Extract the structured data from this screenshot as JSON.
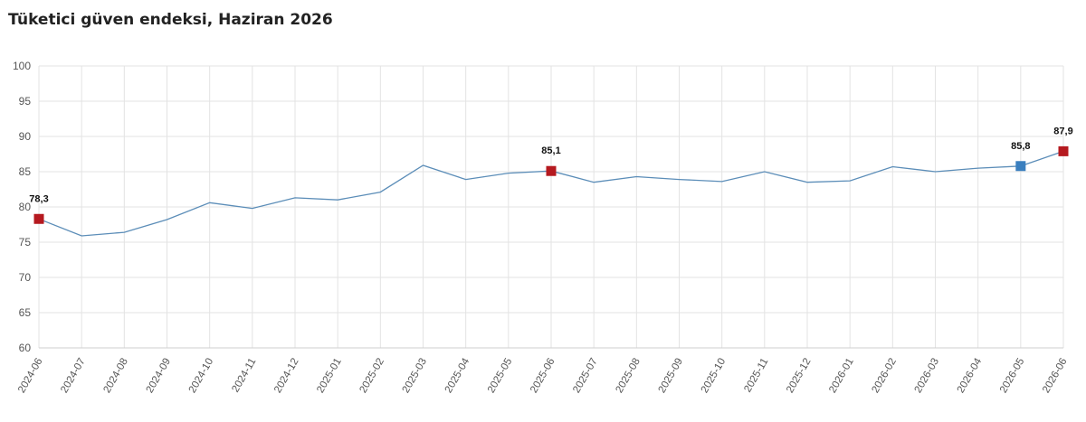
{
  "title": "Tüketici güven endeksi, Haziran 2026",
  "chart_data": {
    "type": "line",
    "title": "Tüketici güven endeksi, Haziran 2026",
    "xlabel": "",
    "ylabel": "",
    "ylim": [
      60,
      100
    ],
    "yticks": [
      "60",
      "65",
      "70",
      "75",
      "80",
      "85",
      "90",
      "95",
      "100"
    ],
    "grid": true,
    "categories": [
      "2024-06",
      "2024-07",
      "2024-08",
      "2024-09",
      "2024-10",
      "2024-11",
      "2024-12",
      "2025-01",
      "2025-02",
      "2025-03",
      "2025-04",
      "2025-05",
      "2025-06",
      "2025-07",
      "2025-08",
      "2025-09",
      "2025-10",
      "2025-11",
      "2025-12",
      "2026-01",
      "2026-02",
      "2026-03",
      "2026-04",
      "2026-05",
      "2026-06"
    ],
    "series": [
      {
        "values": [
          78.3,
          75.9,
          76.4,
          78.2,
          80.6,
          79.8,
          81.3,
          81.0,
          82.1,
          85.9,
          83.9,
          84.8,
          85.1,
          83.5,
          84.3,
          83.9,
          83.6,
          85.0,
          83.5,
          83.7,
          85.7,
          85.0,
          85.5,
          85.8,
          87.9
        ],
        "color": "#5b8db8"
      }
    ],
    "highlights": [
      {
        "index": 0,
        "label": "78,3",
        "color": "#b5191f"
      },
      {
        "index": 12,
        "label": "85,1",
        "color": "#b5191f"
      },
      {
        "index": 23,
        "label": "85,8",
        "color": "#3a7fbf"
      },
      {
        "index": 24,
        "label": "87,9",
        "color": "#b5191f"
      }
    ]
  }
}
